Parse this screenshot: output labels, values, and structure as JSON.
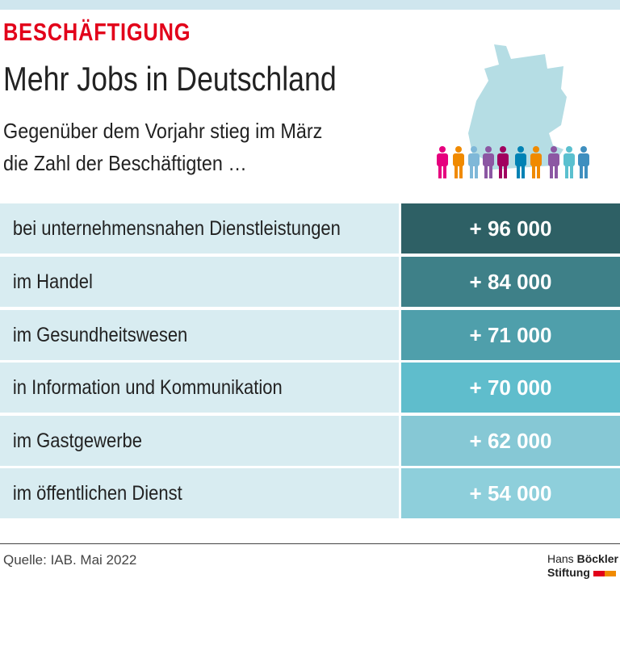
{
  "header": {
    "kicker": "BESCHÄFTIGUNG",
    "title": "Mehr Jobs in Deutschland",
    "subtitle_line1": "Gegenüber dem Vorjahr stieg im März",
    "subtitle_line2": "die Zahl der Beschäftigten …"
  },
  "illustration": {
    "icon": "germany-map-with-people-icon",
    "map_color": "#b5dde4",
    "people_colors": [
      "#e6007e",
      "#f08a00",
      "#7fb8d8",
      "#8c57a3",
      "#a1005f",
      "#0082b4",
      "#f08a00",
      "#8c57a3",
      "#5bc0cf",
      "#3f8fbf"
    ]
  },
  "chart_data": {
    "type": "table",
    "categories": [
      "bei unternehmensnahen Dienstleistungen",
      "im Handel",
      "im Gesundheitswesen",
      "in Information und Kommunikation",
      "im Gastgewerbe",
      "im öffentlichen Dienst"
    ],
    "values": [
      96000,
      84000,
      71000,
      70000,
      62000,
      54000
    ],
    "labels": [
      "+ 96 000",
      "+ 84 000",
      "+ 71 000",
      "+ 70 000",
      "+ 62 000",
      "+ 54 000"
    ],
    "colors": [
      "#2e6065",
      "#3e8088",
      "#4f9fab",
      "#5fbdcc",
      "#86c8d5",
      "#8ecfdb"
    ]
  },
  "footer": {
    "source": "Quelle: IAB. Mai 2022",
    "logo_line1_a": "Hans ",
    "logo_line1_b": "Böckler",
    "logo_line2": "Stiftung"
  }
}
